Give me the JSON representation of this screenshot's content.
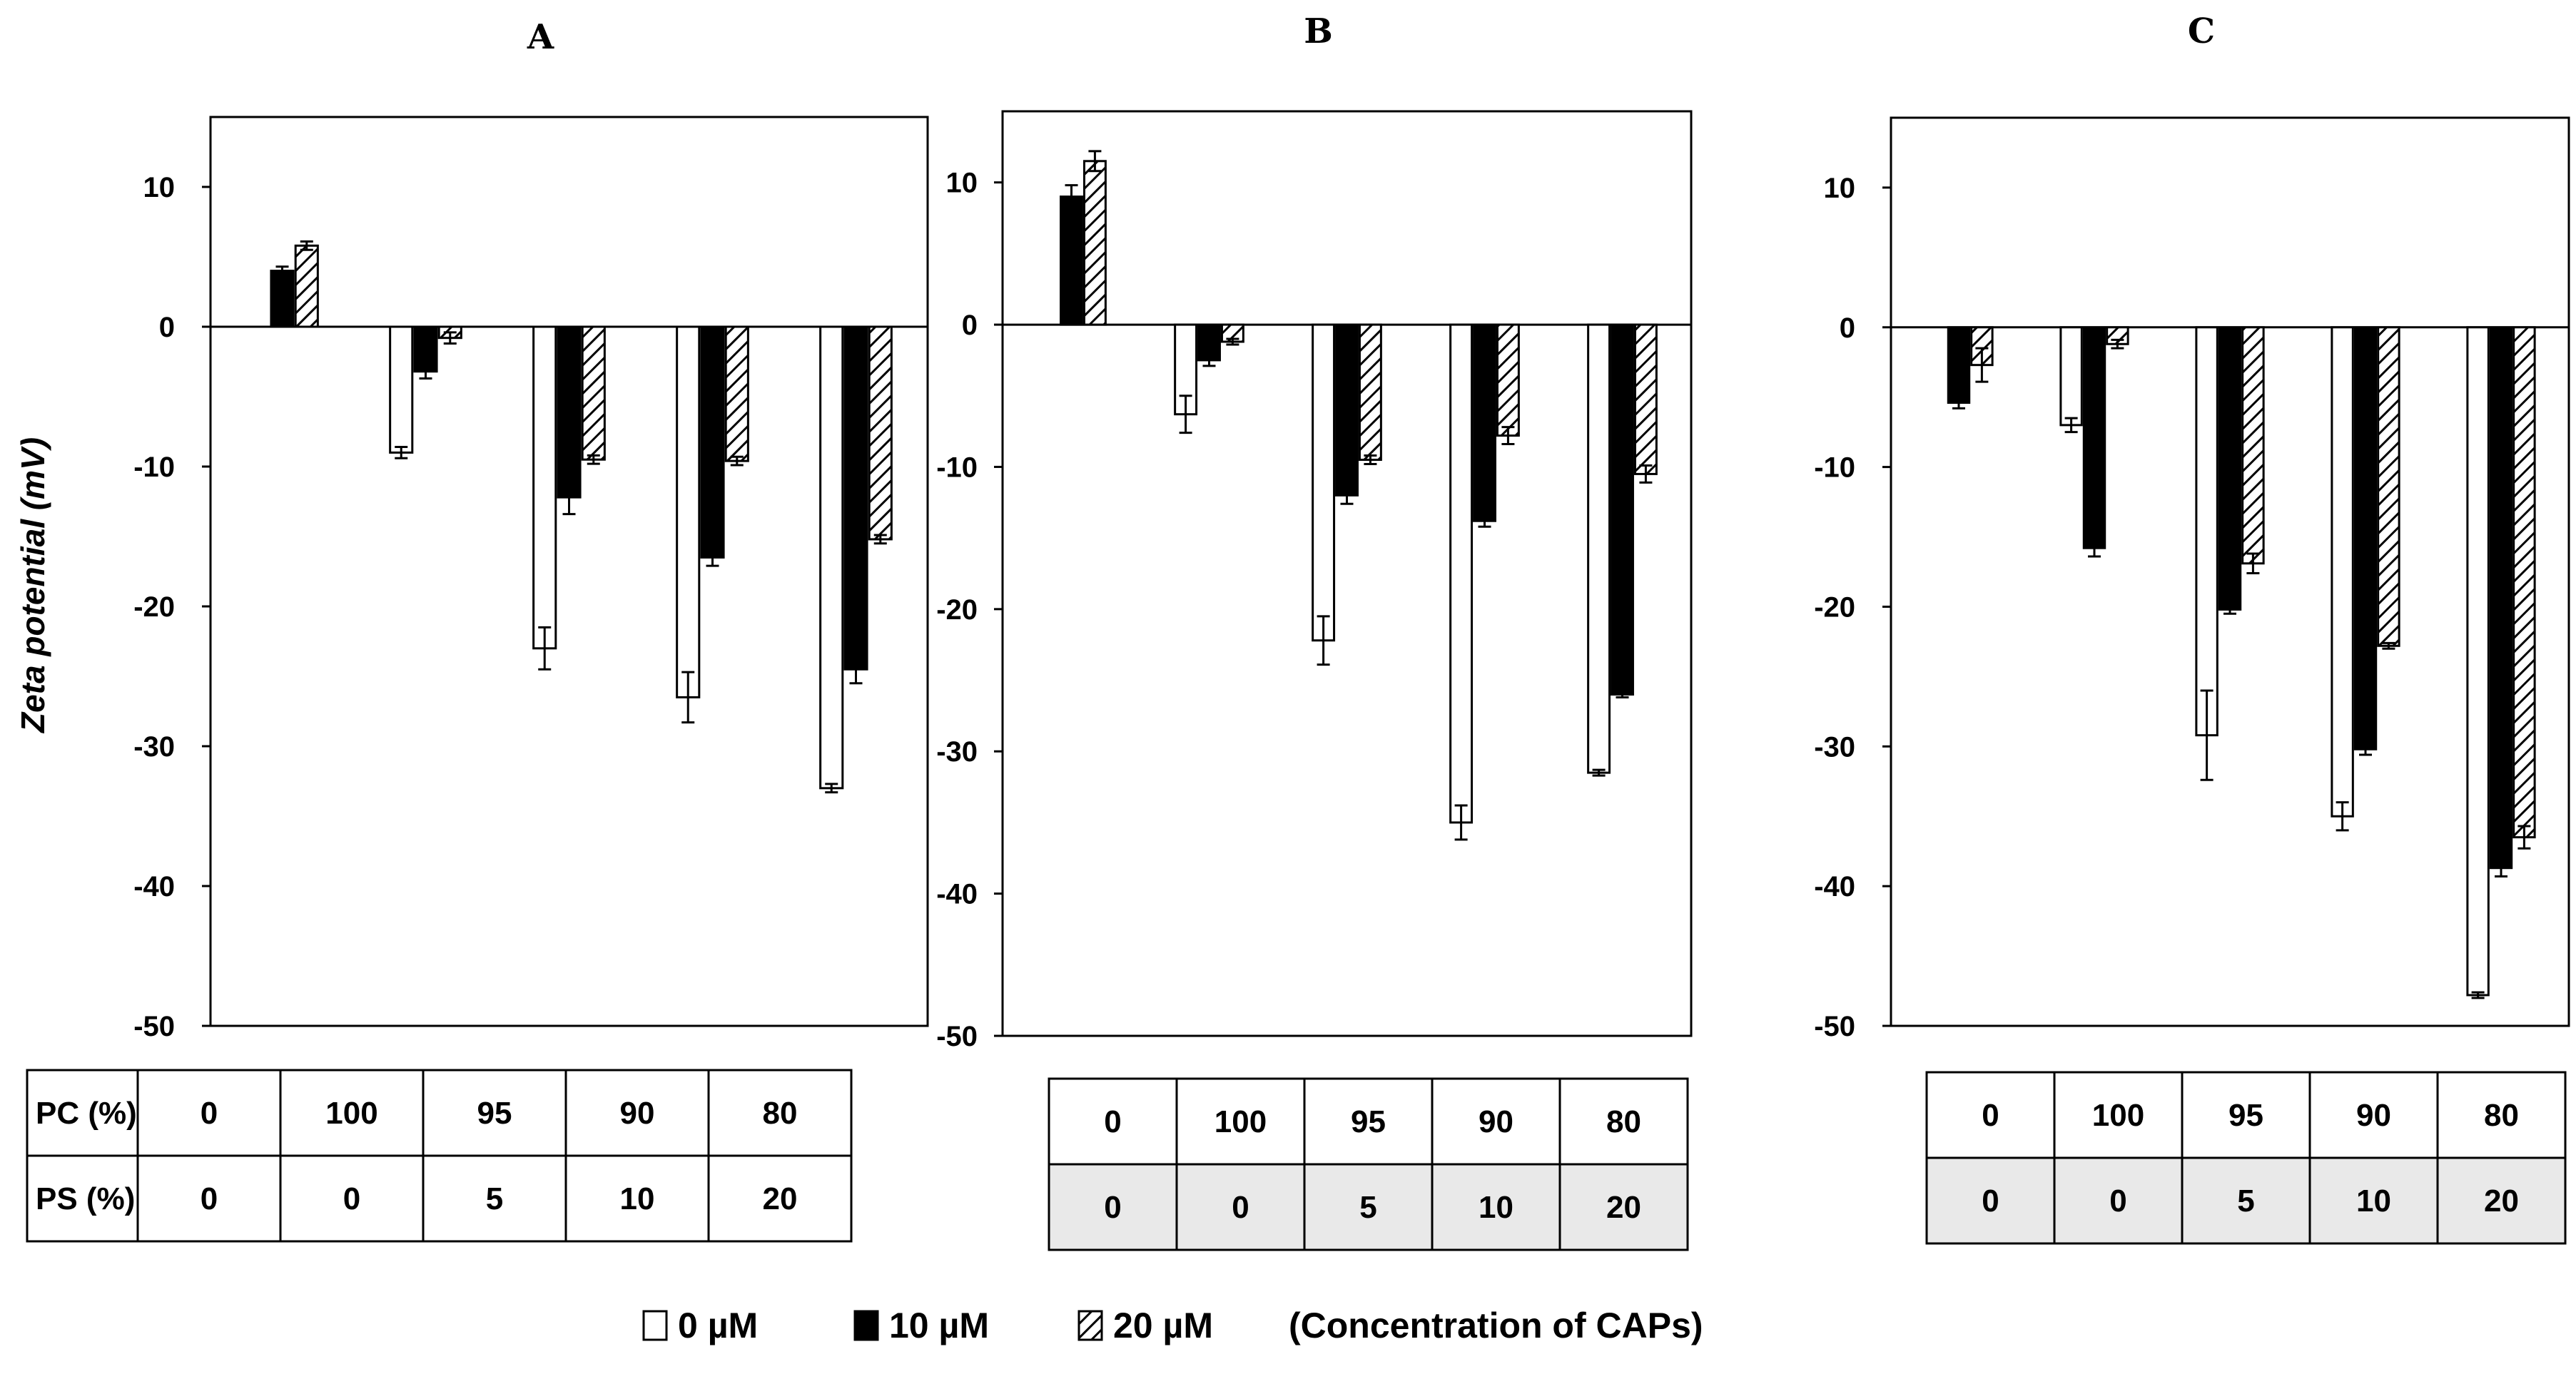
{
  "chart_data": [
    {
      "type": "bar",
      "title": "A",
      "categories": [
        "0/0",
        "100/0",
        "95/5",
        "90/10",
        "80/20"
      ],
      "series": [
        {
          "name": "0 µM",
          "values": [
            0,
            -9,
            -23,
            -26.5,
            -33
          ],
          "errors": [
            0,
            0.4,
            1.5,
            1.8,
            0.3
          ]
        },
        {
          "name": "10 µM",
          "values": [
            4,
            -3.2,
            -12.2,
            -16.5,
            -24.5
          ],
          "errors": [
            0.3,
            0.5,
            1.2,
            0.6,
            1.0
          ]
        },
        {
          "name": "20 µM",
          "values": [
            5.8,
            -0.8,
            -9.5,
            -9.6,
            -15.2
          ],
          "errors": [
            0.3,
            0.4,
            0.3,
            0.3,
            0.3
          ]
        }
      ],
      "ylim": [
        -50,
        15
      ],
      "yticks": [
        10,
        0,
        -10,
        -20,
        -30,
        -40,
        -50
      ],
      "table": {
        "rows": [
          {
            "label": "PC (%)",
            "cells": [
              "0",
              "100",
              "95",
              "90",
              "80"
            ]
          },
          {
            "label": "PS (%)",
            "cells": [
              "0",
              "0",
              "5",
              "10",
              "20"
            ]
          }
        ]
      }
    },
    {
      "type": "bar",
      "title": "B",
      "categories": [
        "0/0",
        "100/0",
        "95/5",
        "90/10",
        "80/20"
      ],
      "series": [
        {
          "name": "0 µM",
          "values": [
            0,
            -6.3,
            -22.2,
            -35,
            -31.5
          ],
          "errors": [
            0,
            1.3,
            1.7,
            1.2,
            0.2
          ]
        },
        {
          "name": "10 µM",
          "values": [
            9,
            -2.5,
            -12,
            -13.8,
            -26
          ],
          "errors": [
            0.8,
            0.4,
            0.6,
            0.4,
            0.2
          ]
        },
        {
          "name": "20 µM",
          "values": [
            11.5,
            -1.2,
            -9.5,
            -7.8,
            -10.5
          ],
          "errors": [
            0.7,
            0.2,
            0.3,
            0.6,
            0.6
          ]
        }
      ],
      "ylim": [
        -50,
        15
      ],
      "yticks": [
        10,
        0,
        -10,
        -20,
        -30,
        -40,
        -50
      ],
      "table": {
        "rows": [
          {
            "label": "",
            "cells": [
              "0",
              "100",
              "95",
              "90",
              "80"
            ]
          },
          {
            "label": "",
            "cells": [
              "0",
              "0",
              "5",
              "10",
              "20"
            ]
          }
        ]
      }
    },
    {
      "type": "bar",
      "title": "C",
      "categories": [
        "0/0",
        "100/0",
        "95/5",
        "90/10",
        "80/20"
      ],
      "series": [
        {
          "name": "0 µM",
          "values": [
            0,
            -7,
            -29.2,
            -35,
            -47.8
          ],
          "errors": [
            0,
            0.5,
            3.2,
            1.0,
            0.2
          ]
        },
        {
          "name": "10 µM",
          "values": [
            -5.4,
            -15.8,
            -20.2,
            -30.2,
            -38.7
          ],
          "errors": [
            0.4,
            0.6,
            0.3,
            0.4,
            0.6
          ]
        },
        {
          "name": "20 µM",
          "values": [
            -2.7,
            -1.2,
            -16.9,
            -22.8,
            -36.5
          ],
          "errors": [
            1.2,
            0.3,
            0.7,
            0.2,
            0.8
          ]
        }
      ],
      "ylim": [
        -50,
        15
      ],
      "yticks": [
        10,
        0,
        -10,
        -20,
        -30,
        -40,
        -50
      ],
      "table": {
        "rows": [
          {
            "label": "",
            "cells": [
              "0",
              "100",
              "95",
              "90",
              "80"
            ]
          },
          {
            "label": "",
            "cells": [
              "0",
              "0",
              "5",
              "10",
              "20"
            ]
          }
        ]
      }
    }
  ],
  "ylabel": "Zeta potential (mV)",
  "legend": {
    "items": [
      {
        "label": "0 µM",
        "style": "open"
      },
      {
        "label": "10 µM",
        "style": "solid"
      },
      {
        "label": "20 µM",
        "style": "hatched"
      }
    ],
    "caption": "(Concentration of CAPs)"
  }
}
